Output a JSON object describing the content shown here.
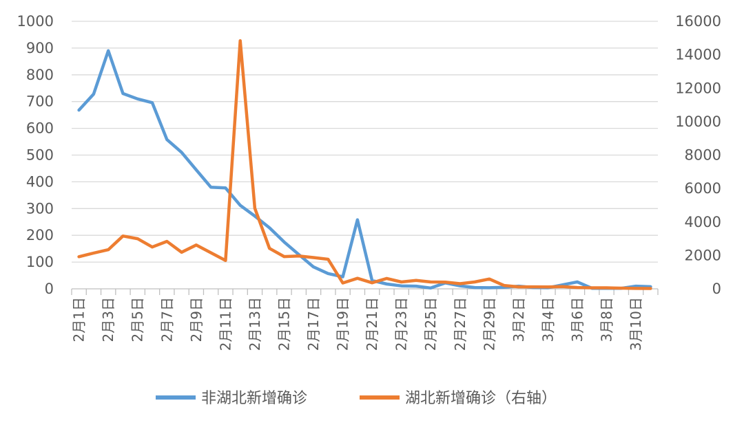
{
  "chart_data": {
    "type": "line",
    "x": [
      "2月1日",
      "2月2日",
      "2月3日",
      "2月4日",
      "2月5日",
      "2月6日",
      "2月7日",
      "2月8日",
      "2月9日",
      "2月10日",
      "2月11日",
      "2月12日",
      "2月13日",
      "2月14日",
      "2月15日",
      "2月16日",
      "2月17日",
      "2月18日",
      "2月19日",
      "2月20日",
      "2月21日",
      "2月22日",
      "2月23日",
      "2月24日",
      "2月25日",
      "2月26日",
      "2月27日",
      "2月28日",
      "2月29日",
      "3月1日",
      "3月2日",
      "3月3日",
      "3月4日",
      "3月5日",
      "3月6日",
      "3月7日",
      "3月8日",
      "3月9日",
      "3月10日",
      "3月11日"
    ],
    "x_tick_labels": [
      "2月1日",
      "2月3日",
      "2月5日",
      "2月7日",
      "2月9日",
      "2月11日",
      "2月13日",
      "2月15日",
      "2月17日",
      "2月19日",
      "2月21日",
      "2月23日",
      "2月25日",
      "2月27日",
      "2月29日",
      "3月2日",
      "3月4日",
      "3月6日",
      "3月8日",
      "3月10日"
    ],
    "series": [
      {
        "name": "非湖北新增确诊",
        "axis": "left",
        "color": "#5B9BD5",
        "values": [
          668,
          728,
          890,
          730,
          710,
          696,
          558,
          510,
          445,
          380,
          377,
          312,
          272,
          228,
          175,
          128,
          82,
          57,
          45,
          258,
          31,
          18,
          11,
          10,
          3,
          22,
          11,
          5,
          4,
          6,
          10,
          5,
          4,
          15,
          26,
          2,
          2,
          2,
          10,
          8
        ]
      },
      {
        "name": "湖北新增确诊（右轴）",
        "axis": "right",
        "color": "#ED7D31",
        "values": [
          1920,
          2140,
          2340,
          3160,
          3000,
          2500,
          2840,
          2190,
          2620,
          2160,
          1700,
          14840,
          4820,
          2420,
          1930,
          1960,
          1870,
          1770,
          350,
          630,
          360,
          620,
          410,
          500,
          410,
          400,
          310,
          410,
          590,
          200,
          120,
          120,
          110,
          130,
          80,
          60,
          60,
          40,
          25,
          20
        ]
      }
    ],
    "left_axis": {
      "ylim": [
        0,
        1000
      ],
      "ticks": [
        "0",
        "100",
        "200",
        "300",
        "400",
        "500",
        "600",
        "700",
        "800",
        "900",
        "1000"
      ]
    },
    "right_axis": {
      "ylim": [
        0,
        16000
      ],
      "ticks": [
        "0",
        "2000",
        "4000",
        "6000",
        "8000",
        "10000",
        "12000",
        "14000",
        "16000"
      ]
    },
    "grid": true,
    "legend": "bottom"
  }
}
